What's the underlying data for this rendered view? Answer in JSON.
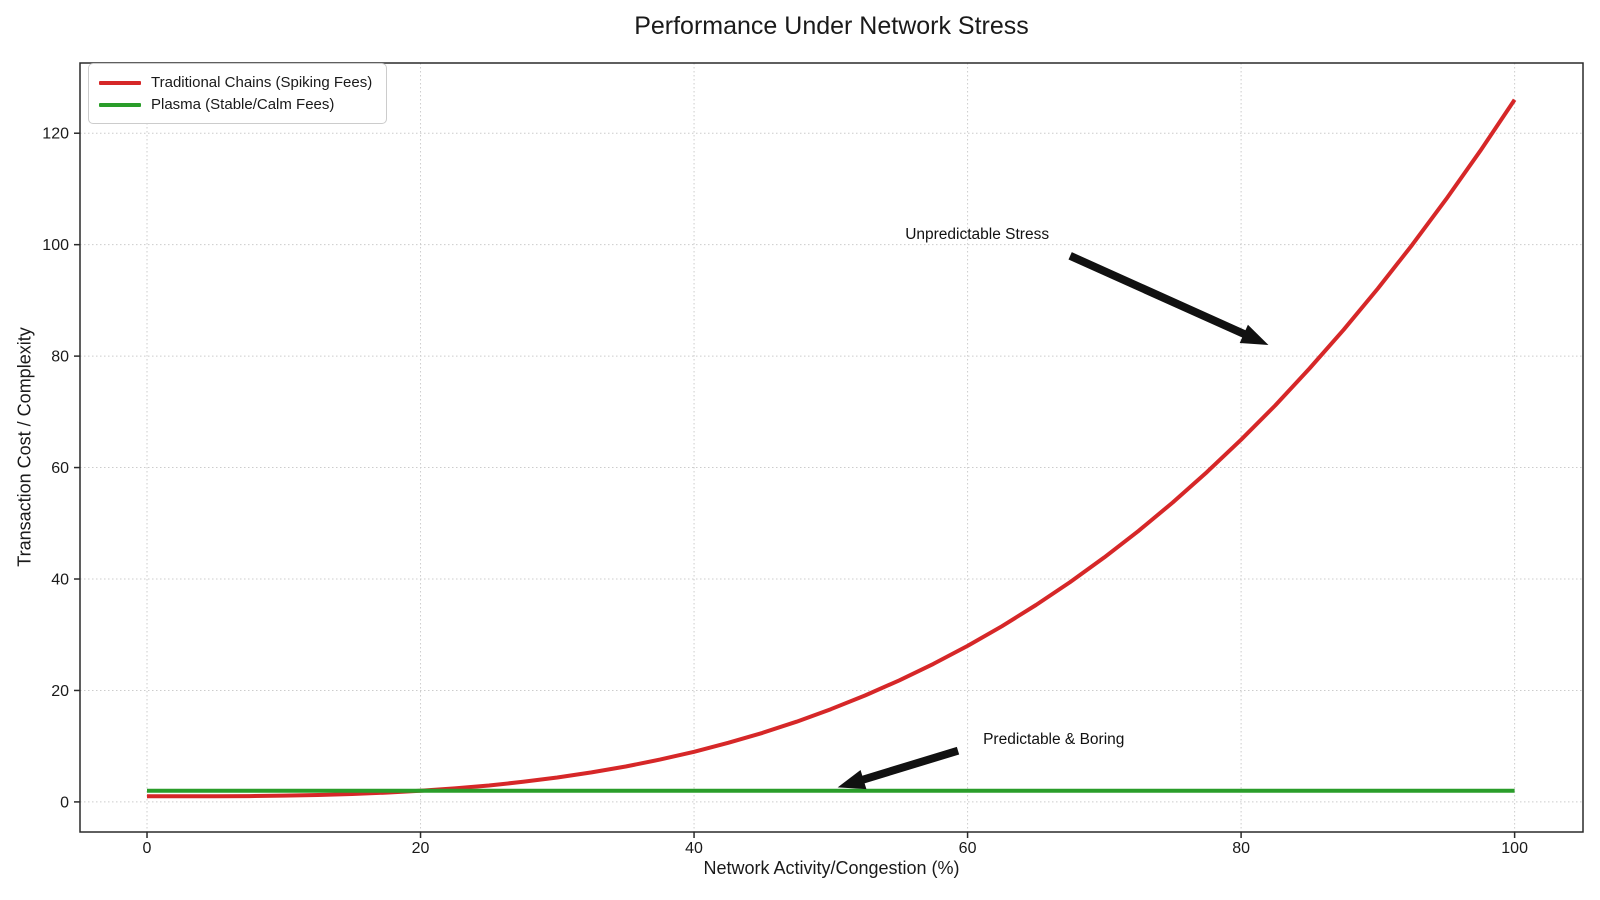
{
  "chart_data": {
    "type": "line",
    "title": "Performance Under Network Stress",
    "xlabel": "Network Activity/Congestion (%)",
    "ylabel": "Transaction Cost / Complexity",
    "xlim": [
      -4.9,
      105.0
    ],
    "ylim": [
      -5.4,
      132.6
    ],
    "x_ticks": [
      0,
      20,
      40,
      60,
      80,
      100
    ],
    "y_ticks": [
      0,
      20,
      40,
      60,
      80,
      100,
      120
    ],
    "grid": true,
    "grid_style": "dotted",
    "legend_position": "upper-left",
    "series": [
      {
        "name": "Traditional Chains (Spiking Fees)",
        "color": "#d62728",
        "line_width": 4,
        "x": [
          0,
          2.5,
          5,
          7.5,
          10,
          12.5,
          15,
          17.5,
          20,
          22.5,
          25,
          27.5,
          30,
          32.5,
          35,
          37.5,
          40,
          42.5,
          45,
          47.5,
          50,
          52.5,
          55,
          57.5,
          60,
          62.5,
          65,
          67.5,
          70,
          72.5,
          75,
          77.5,
          80,
          82.5,
          85,
          87.5,
          90,
          92.5,
          95,
          97.5,
          100
        ],
        "y": [
          1.0,
          1.0,
          1.02,
          1.05,
          1.13,
          1.24,
          1.42,
          1.67,
          2.0,
          2.42,
          2.95,
          3.6,
          4.38,
          5.29,
          6.36,
          7.59,
          9.0,
          10.6,
          12.39,
          14.4,
          16.63,
          19.09,
          21.8,
          24.76,
          28.0,
          31.52,
          35.33,
          39.44,
          43.88,
          48.63,
          53.73,
          59.19,
          65.0,
          71.15,
          77.77,
          84.74,
          92.13,
          99.93,
          108.17,
          116.86,
          126.0
        ]
      },
      {
        "name": "Plasma (Stable/Calm Fees)",
        "color": "#2a9d2a",
        "line_width": 4,
        "x": [
          0,
          100
        ],
        "y": [
          2.0,
          2.0
        ]
      }
    ],
    "annotations": [
      {
        "text": "Unpredictable Stress",
        "text_x": 60.7,
        "text_y": 102.0,
        "arrow_tail_x": 67.5,
        "arrow_tail_y": 98.0,
        "arrow_tip_x": 82.0,
        "arrow_tip_y": 82.0
      },
      {
        "text": "Predictable & Boring",
        "text_x": 66.3,
        "text_y": 11.4,
        "arrow_tail_x": 59.3,
        "arrow_tail_y": 9.2,
        "arrow_tip_x": 50.5,
        "arrow_tip_y": 2.6
      }
    ],
    "colors": {
      "grid": "#cccccc",
      "spine": "#2a2a2a",
      "text": "#1a1a1a",
      "annotation": "#111111",
      "background": "#ffffff",
      "red_series": "#d62728",
      "green_series": "#2a9d2a"
    }
  }
}
